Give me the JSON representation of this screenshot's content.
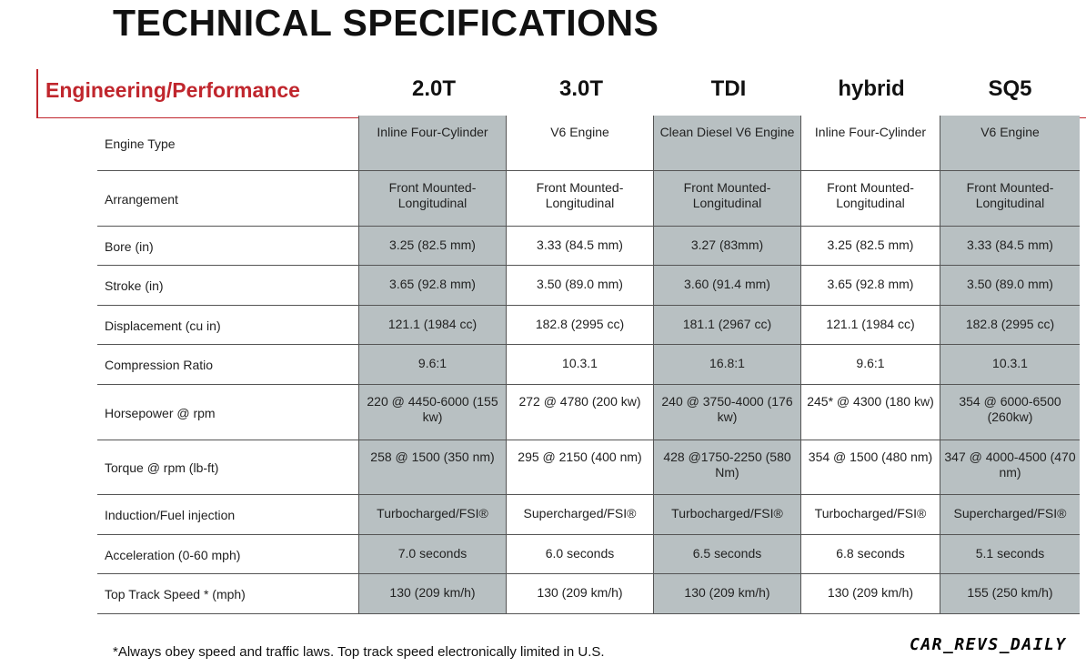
{
  "title": "TECHNICAL SPECIFICATIONS",
  "section": "Engineering/Performance",
  "columns": [
    "2.0T",
    "3.0T",
    "TDI",
    "hybrid",
    "SQ5"
  ],
  "rows": [
    {
      "label": "Engine Type",
      "values": [
        "Inline Four-Cylinder",
        "V6 Engine",
        "Clean Diesel V6 Engine",
        "Inline Four-Cylinder",
        "V6 Engine"
      ]
    },
    {
      "label": "Arrangement",
      "values": [
        "Front Mounted-Longitudinal",
        "Front Mounted-Longitudinal",
        "Front Mounted-Longitudinal",
        "Front Mounted-Longitudinal",
        "Front Mounted-Longitudinal"
      ]
    },
    {
      "label": "Bore (in)",
      "values": [
        "3.25 (82.5 mm)",
        "3.33 (84.5 mm)",
        "3.27 (83mm)",
        "3.25 (82.5 mm)",
        "3.33 (84.5 mm)"
      ]
    },
    {
      "label": "Stroke (in)",
      "values": [
        "3.65 (92.8 mm)",
        "3.50 (89.0 mm)",
        "3.60 (91.4 mm)",
        "3.65 (92.8 mm)",
        "3.50 (89.0 mm)"
      ]
    },
    {
      "label": "Displacement (cu in)",
      "values": [
        "121.1 (1984 cc)",
        "182.8 (2995 cc)",
        "181.1 (2967 cc)",
        "121.1 (1984 cc)",
        "182.8 (2995 cc)"
      ]
    },
    {
      "label": "Compression Ratio",
      "values": [
        "9.6:1",
        "10.3.1",
        "16.8:1",
        "9.6:1",
        "10.3.1"
      ]
    },
    {
      "label": "Horsepower @ rpm",
      "values": [
        "220 @ 4450-6000 (155 kw)",
        "272 @ 4780 (200 kw)",
        "240 @ 3750-4000 (176 kw)",
        "245* @ 4300 (180 kw)",
        "354 @ 6000-6500 (260kw)"
      ]
    },
    {
      "label": "Torque @ rpm  (lb-ft)",
      "values": [
        "258 @ 1500 (350 nm)",
        "295 @ 2150 (400 nm)",
        "428 @1750-2250 (580 Nm)",
        "354 @ 1500 (480 nm)",
        "347 @ 4000-4500 (470 nm)"
      ]
    },
    {
      "label": "Induction/Fuel injection",
      "values": [
        "Turbocharged/FSI®",
        "Supercharged/FSI®",
        "Turbocharged/FSI®",
        "Turbocharged/FSI®",
        "Supercharged/FSI®"
      ]
    },
    {
      "label": "Acceleration  (0-60 mph)",
      "values": [
        "7.0 seconds",
        "6.0 seconds",
        "6.5 seconds",
        "6.8 seconds",
        "5.1 seconds"
      ]
    },
    {
      "label": "Top Track Speed * (mph)",
      "values": [
        "130 (209 km/h)",
        "130 (209 km/h)",
        "130 (209 km/h)",
        "130 (209 km/h)",
        "155 (250 km/h)"
      ]
    }
  ],
  "footnote": "*Always obey speed and traffic laws. Top track speed electronically limited in U.S.",
  "watermark": "CAR_REVS_DAILY",
  "colors": {
    "accent": "#c0262d",
    "shaded_cell": "#b8c0c2"
  }
}
